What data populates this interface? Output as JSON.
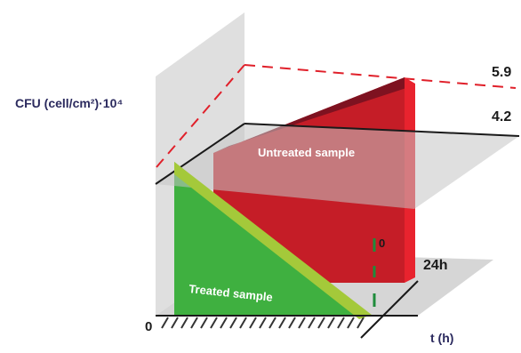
{
  "y_axis_label": "CFU (cell/cm²)·10⁴",
  "x_axis_label": "t (h)",
  "origin_label": "0",
  "value_high": "5.9",
  "value_mid": "4.2",
  "depth_zero": "0",
  "time_24h": "24h",
  "untreated_label": "Untreated sample",
  "treated_label": "Treated sample",
  "colors": {
    "untreated": "#d2212b",
    "treated": "#3fb040",
    "trend": "#a4c93a",
    "dashed_limit": "#e0202a",
    "planes": "#c9c9c9"
  }
}
